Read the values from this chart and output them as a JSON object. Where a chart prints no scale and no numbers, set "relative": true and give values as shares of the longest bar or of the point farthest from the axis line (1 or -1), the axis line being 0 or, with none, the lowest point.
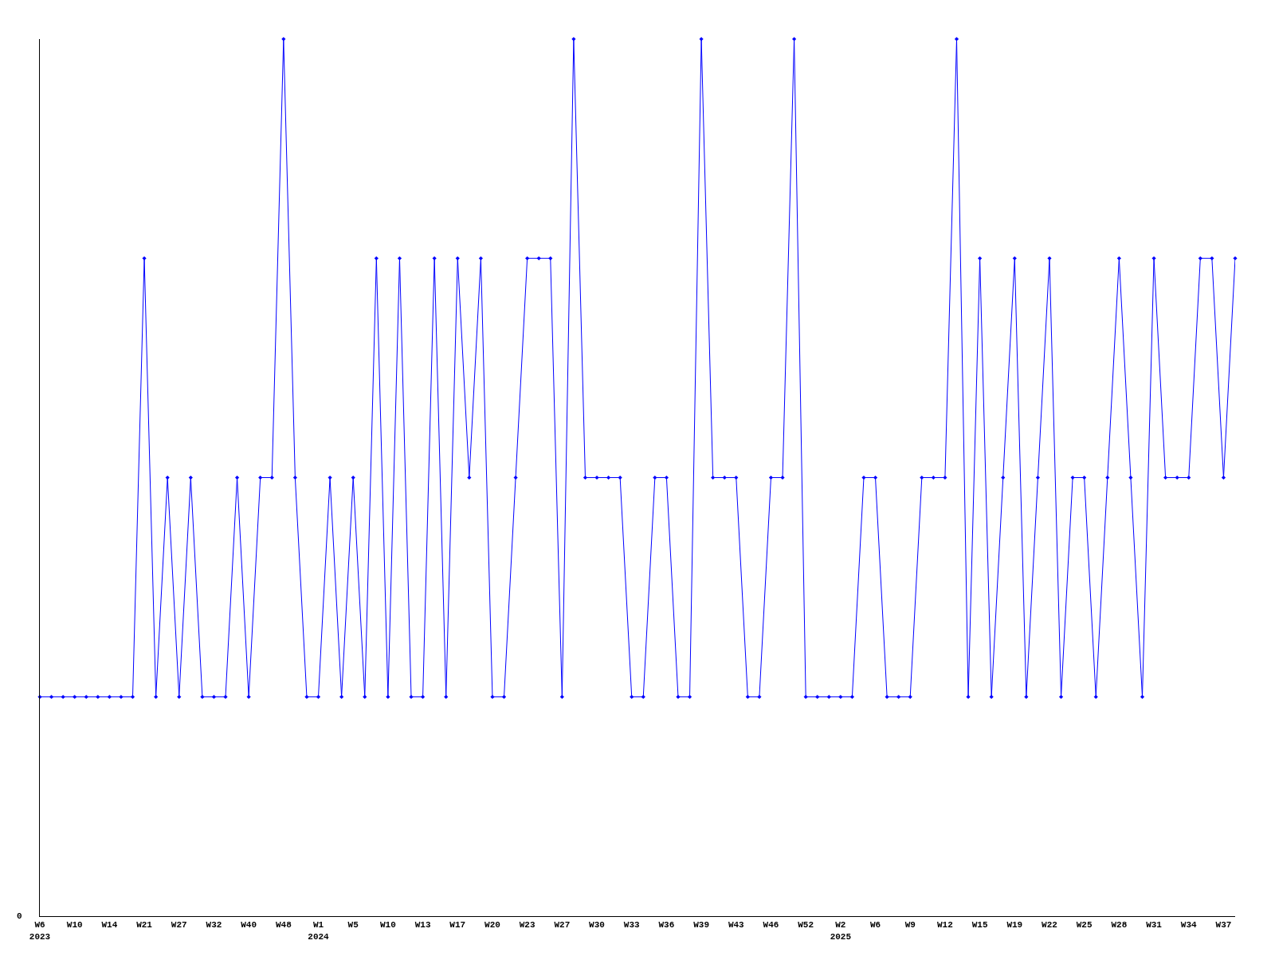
{
  "chart_data": {
    "type": "line",
    "relative": true,
    "color": "#0000ff",
    "marker": "diamond",
    "line_style": "solid",
    "annotations": [
      "0"
    ],
    "categories": [
      "W6\n2023",
      null,
      null,
      "W10",
      null,
      null,
      "W14",
      null,
      null,
      "W21",
      null,
      null,
      "W27",
      null,
      null,
      "W32",
      null,
      null,
      "W40",
      null,
      null,
      "W48",
      null,
      null,
      "W1\n2024",
      null,
      null,
      "W5",
      null,
      null,
      "W10",
      null,
      null,
      "W13",
      null,
      null,
      "W17",
      null,
      null,
      "W20",
      null,
      null,
      "W23",
      null,
      null,
      "W27",
      null,
      null,
      "W30",
      null,
      null,
      "W33",
      null,
      null,
      "W36",
      null,
      null,
      "W39",
      null,
      null,
      "W43",
      null,
      null,
      "W46",
      null,
      null,
      "W52",
      null,
      null,
      "W2\n2025",
      null,
      null,
      "W6",
      null,
      null,
      "W9",
      null,
      null,
      "W12",
      null,
      null,
      "W15",
      null,
      null,
      "W19",
      null,
      null,
      "W22",
      null,
      null,
      "W25",
      null,
      null,
      "W28",
      null,
      null,
      "W31",
      null,
      null,
      "W34",
      null,
      null,
      "W37",
      null
    ],
    "values": [
      0.25,
      0.25,
      0.25,
      0.25,
      0.25,
      0.25,
      0.25,
      0.25,
      0.25,
      0.75,
      0.25,
      0.5,
      0.25,
      0.5,
      0.25,
      0.25,
      0.25,
      0.5,
      0.25,
      0.5,
      0.5,
      1,
      0.5,
      0.25,
      0.25,
      0.5,
      0.25,
      0.5,
      0.25,
      0.75,
      0.25,
      0.75,
      0.25,
      0.25,
      0.75,
      0.25,
      0.75,
      0.5,
      0.75,
      0.25,
      0.25,
      0.5,
      0.75,
      0.75,
      0.75,
      0.25,
      1,
      0.5,
      0.5,
      0.5,
      0.5,
      0.25,
      0.25,
      0.5,
      0.5,
      0.25,
      0.25,
      1,
      0.5,
      0.5,
      0.5,
      0.25,
      0.25,
      0.5,
      0.5,
      1,
      0.25,
      0.25,
      0.25,
      0.25,
      0.25,
      0.5,
      0.5,
      0.25,
      0.25,
      0.25,
      0.5,
      0.5,
      0.5,
      1,
      0.25,
      0.75,
      0.25,
      0.5,
      0.75,
      0.25,
      0.5,
      0.75,
      0.25,
      0.5,
      0.5,
      0.25,
      0.5,
      0.75,
      0.5,
      0.25,
      0.75,
      0.5,
      0.5,
      0.5,
      0.75,
      0.75,
      0.5,
      0.75
    ]
  }
}
